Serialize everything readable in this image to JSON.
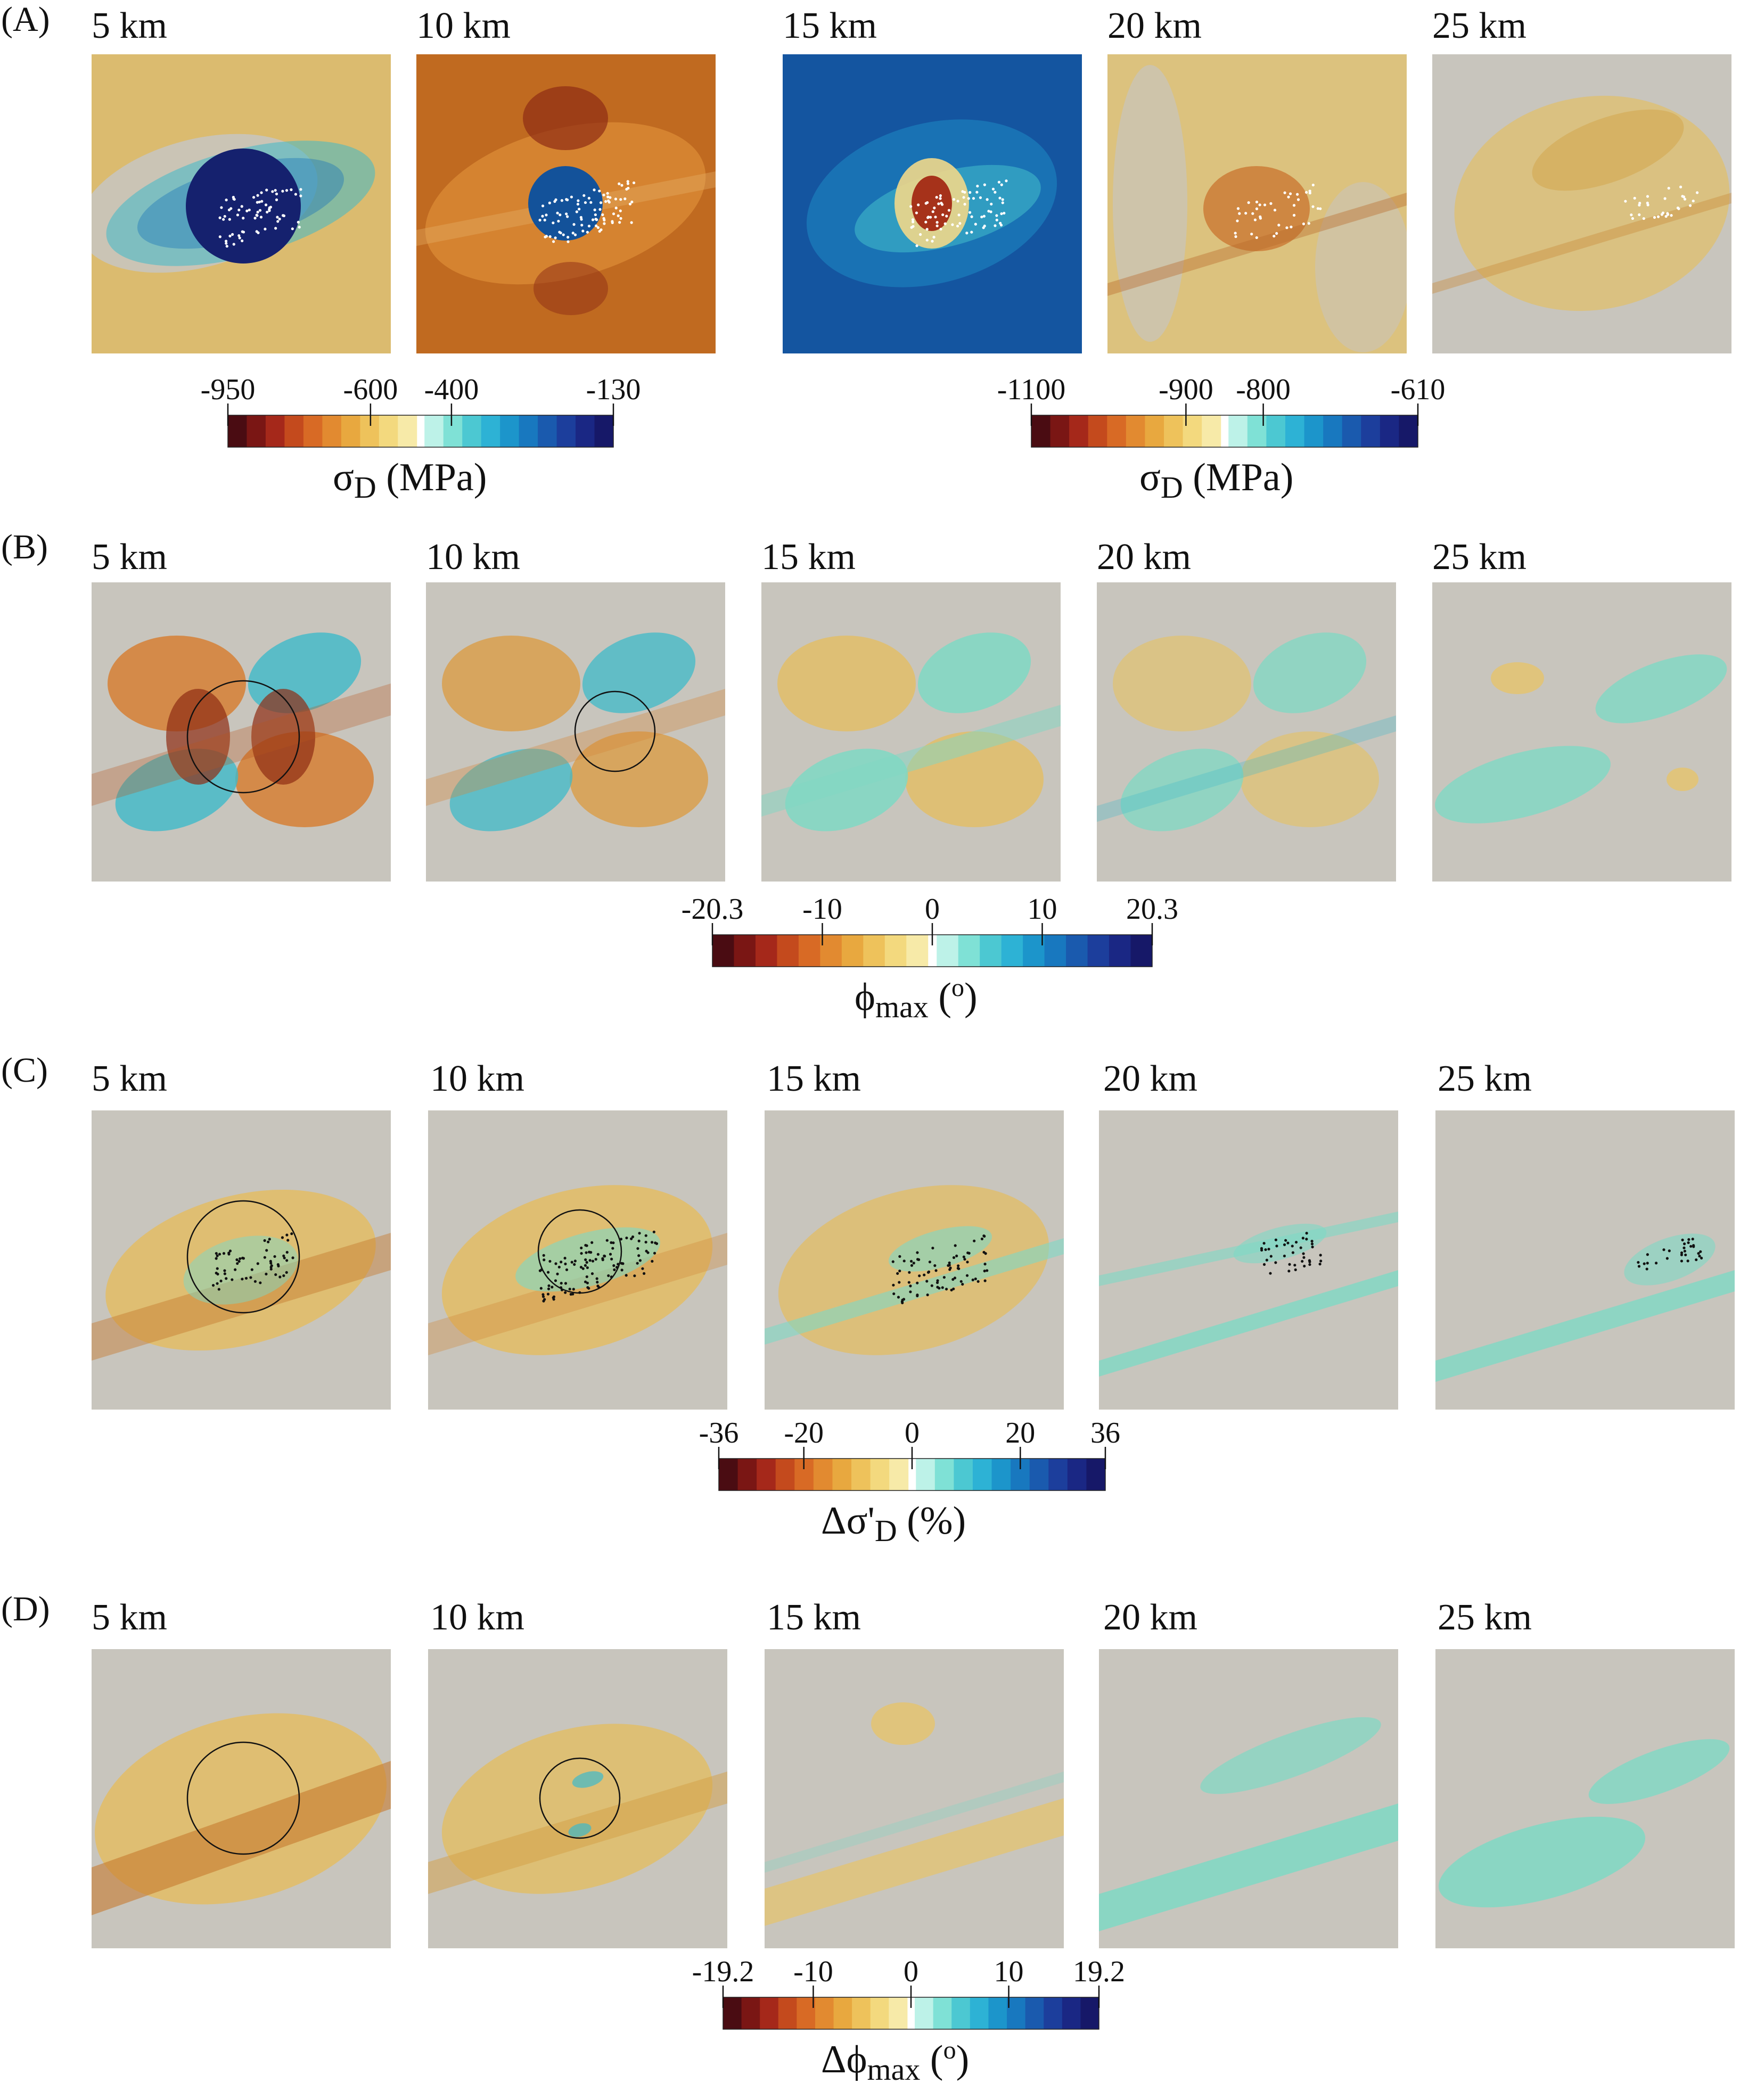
{
  "rows": [
    {
      "label": "(A)",
      "depths": [
        "5 km",
        "10 km",
        "15 km",
        "20 km",
        "25 km"
      ],
      "panel_styles": [
        "a5",
        "a10",
        "a15",
        "a20",
        "a25"
      ],
      "colorbars": [
        {
          "ticks": [
            "-950",
            "-600",
            "-400",
            "-130"
          ],
          "title_main": "σ",
          "title_sub": "D",
          "title_rest": " (MPa)",
          "warm_colors": [
            "#4a0c12",
            "#7a1614",
            "#a5281a",
            "#c44a1d",
            "#d86a25",
            "#e28a30",
            "#e8a83f",
            "#eec25b",
            "#f3d97e",
            "#f7eaa8"
          ],
          "cool_colors": [
            "#bdf2e8",
            "#7fe1d6",
            "#4cc8d2",
            "#2db2d5",
            "#1c95cb",
            "#1878bf",
            "#1a5aae",
            "#1c3e9c",
            "#1a2784",
            "#161868"
          ]
        },
        {
          "ticks": [
            "-1100",
            "-900",
            "-800",
            "-610"
          ],
          "title_main": "σ",
          "title_sub": "D",
          "title_rest": " (MPa)",
          "warm_colors": [
            "#4a0c12",
            "#7a1614",
            "#a5281a",
            "#c44a1d",
            "#d86a25",
            "#e28a30",
            "#e8a83f",
            "#eec25b",
            "#f3d97e",
            "#f7eaa8"
          ],
          "cool_colors": [
            "#bdf2e8",
            "#7fe1d6",
            "#4cc8d2",
            "#2db2d5",
            "#1c95cb",
            "#1878bf",
            "#1a5aae",
            "#1c3e9c",
            "#1a2784",
            "#161868"
          ]
        }
      ]
    },
    {
      "label": "(B)",
      "depths": [
        "5 km",
        "10 km",
        "15 km",
        "20 km",
        "25 km"
      ],
      "panel_styles": [
        "b5",
        "b10",
        "b15",
        "b20",
        "b25"
      ],
      "colorbars": [
        {
          "ticks": [
            "-20.3",
            "-10",
            "0",
            "10",
            "20.3"
          ],
          "title_main": "ϕ",
          "title_sub": "max",
          "title_rest": " (",
          "title_sup": "o",
          "title_end": ")",
          "warm_colors": [
            "#4a0c12",
            "#7a1614",
            "#a5281a",
            "#c44a1d",
            "#d86a25",
            "#e28a30",
            "#e8a83f",
            "#eec25b",
            "#f3d97e",
            "#f7eaa8"
          ],
          "cool_colors": [
            "#bdf2e8",
            "#7fe1d6",
            "#4cc8d2",
            "#2db2d5",
            "#1c95cb",
            "#1878bf",
            "#1a5aae",
            "#1c3e9c",
            "#1a2784",
            "#161868"
          ]
        }
      ]
    },
    {
      "label": "(C)",
      "depths": [
        "5 km",
        "10 km",
        "15 km",
        "20 km",
        "25 km"
      ],
      "panel_styles": [
        "c5",
        "c10",
        "c15",
        "c20",
        "c25"
      ],
      "colorbars": [
        {
          "ticks": [
            "-36",
            "-20",
            "0",
            "20",
            "36"
          ],
          "title_main": "Δσ'",
          "title_sub": "D",
          "title_rest": " (%)",
          "warm_colors": [
            "#4a0c12",
            "#7a1614",
            "#a5281a",
            "#c44a1d",
            "#d86a25",
            "#e28a30",
            "#e8a83f",
            "#eec25b",
            "#f3d97e",
            "#f7eaa8"
          ],
          "cool_colors": [
            "#bdf2e8",
            "#7fe1d6",
            "#4cc8d2",
            "#2db2d5",
            "#1c95cb",
            "#1878bf",
            "#1a5aae",
            "#1c3e9c",
            "#1a2784",
            "#161868"
          ]
        }
      ]
    },
    {
      "label": "(D)",
      "depths": [
        "5 km",
        "10 km",
        "15 km",
        "20 km",
        "25 km"
      ],
      "panel_styles": [
        "d5",
        "d10",
        "d15",
        "d20",
        "d25"
      ],
      "colorbars": [
        {
          "ticks": [
            "-19.2",
            "-10",
            "0",
            "10",
            "19.2"
          ],
          "title_main": "Δϕ",
          "title_sub": "max",
          "title_rest": " (",
          "title_sup": "o",
          "title_end": ")",
          "warm_colors": [
            "#4a0c12",
            "#7a1614",
            "#a5281a",
            "#c44a1d",
            "#d86a25",
            "#e28a30",
            "#e8a83f",
            "#eec25b",
            "#f3d97e",
            "#f7eaa8"
          ],
          "cool_colors": [
            "#bdf2e8",
            "#7fe1d6",
            "#4cc8d2",
            "#2db2d5",
            "#1c95cb",
            "#1878bf",
            "#1a5aae",
            "#1c3e9c",
            "#1a2784",
            "#161868"
          ]
        }
      ]
    }
  ],
  "colors": {
    "background_gray": "#c8c5bd",
    "warm_light": "#e6c77a",
    "warm_mid": "#dba84a",
    "warm_dark": "#b8561e",
    "teal_light": "#7fd8c4",
    "teal_mid": "#3fb9c9",
    "navy": "#15216e",
    "deep_blue": "#13529a",
    "rust": "#c06a20"
  }
}
